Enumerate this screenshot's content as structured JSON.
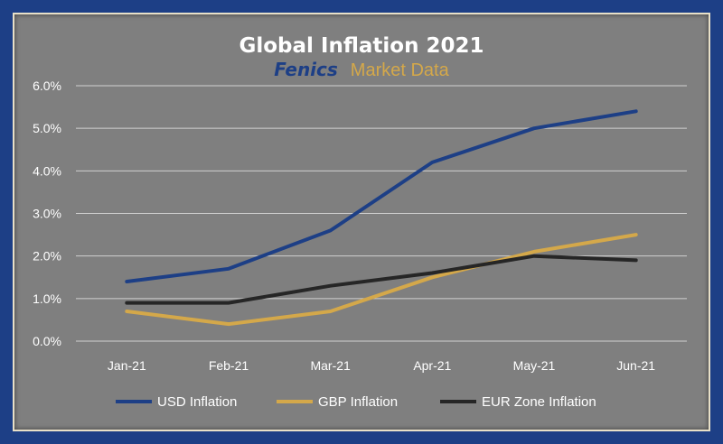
{
  "chart_data": {
    "type": "line",
    "title": "Global Inflation 2021",
    "brand": {
      "name": "Fenics",
      "suffix": "Market Data"
    },
    "categories": [
      "Jan-21",
      "Feb-21",
      "Mar-21",
      "Apr-21",
      "May-21",
      "Jun-21"
    ],
    "yticks": [
      "0.0%",
      "1.0%",
      "2.0%",
      "3.0%",
      "4.0%",
      "5.0%",
      "6.0%"
    ],
    "ylim": [
      0,
      6
    ],
    "grid": true,
    "legend_position": "bottom",
    "series": [
      {
        "name": "USD Inflation",
        "values": [
          1.4,
          1.7,
          2.6,
          4.2,
          5.0,
          5.4
        ],
        "color": "#1d3f86"
      },
      {
        "name": "GBP Inflation",
        "values": [
          0.7,
          0.4,
          0.7,
          1.5,
          2.1,
          2.5
        ],
        "color": "#d4a84a"
      },
      {
        "name": "EUR Zone Inflation",
        "values": [
          0.9,
          0.9,
          1.3,
          1.6,
          2.0,
          1.9
        ],
        "color": "#262626"
      }
    ]
  }
}
